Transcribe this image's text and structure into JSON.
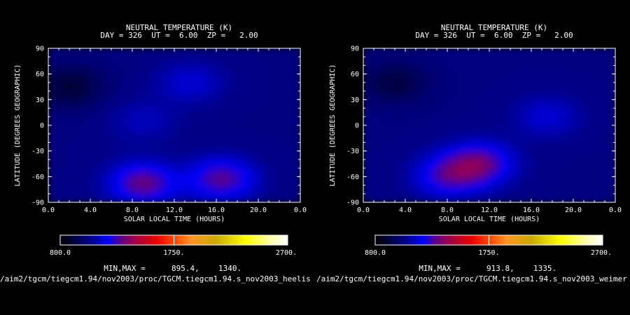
{
  "panels": [
    {
      "title": "NEUTRAL TEMPERATURE (K)",
      "subtitle": "DAY = 326  UT =  6.00  ZP =   2.00",
      "minmax_label": "MIN,MAX =",
      "min": "895.4,",
      "max": "1340.",
      "path": "/aim2/tgcm/tiegcm1.94/nov2003/proc/TGCM.tiegcm1.94.s_nov2003_heelis",
      "colorbar": {
        "min_label": "800.0",
        "mid_label": "1750.",
        "max_label": "2700."
      }
    },
    {
      "title": "NEUTRAL TEMPERATURE (K)",
      "subtitle": "DAY = 326  UT =  6.00  ZP =   2.00",
      "minmax_label": "MIN,MAX =",
      "min": "913.8,",
      "max": "1335.",
      "path": "/aim2/tgcm/tiegcm1.94/nov2003/proc/TGCM.tiegcm1.94.s_nov2003_weimer",
      "colorbar": {
        "min_label": "800.0",
        "mid_label": "1750.",
        "max_label": "2700."
      }
    }
  ],
  "chart_data": [
    {
      "type": "heatmap",
      "title": "NEUTRAL TEMPERATURE (K)",
      "subtitle": "DAY = 326  UT =  6.00  ZP =   2.00",
      "xlabel": "SOLAR LOCAL TIME (HOURS)",
      "ylabel": "LATITUDE (DEGREES GEOGRAPHIC)",
      "x_ticks": [
        "0.0",
        "4.0",
        "8.0",
        "12.0",
        "16.0",
        "20.0",
        "0.0"
      ],
      "y_ticks": [
        "90",
        "60",
        "30",
        "0",
        "-30",
        "-60",
        "-90"
      ],
      "xlim": [
        0,
        24
      ],
      "ylim": [
        -90,
        90
      ],
      "color_range": [
        800,
        2700
      ],
      "min": 895.4,
      "max": 1340,
      "features": [
        {
          "slt": 9.0,
          "lat": -68,
          "temp": 1320
        },
        {
          "slt": 16.5,
          "lat": -63,
          "temp": 1300
        },
        {
          "slt": 13.5,
          "lat": 50,
          "temp": 1150
        },
        {
          "slt": 9.0,
          "lat": 5,
          "temp": 1120
        },
        {
          "slt": 2.0,
          "lat": 45,
          "temp": 900
        }
      ]
    },
    {
      "type": "heatmap",
      "title": "NEUTRAL TEMPERATURE (K)",
      "subtitle": "DAY = 326  UT =  6.00  ZP =   2.00",
      "xlabel": "SOLAR LOCAL TIME (HOURS)",
      "ylabel": "LATITUDE (DEGREES GEOGRAPHIC)",
      "x_ticks": [
        "0.0",
        "4.0",
        "8.0",
        "12.0",
        "16.0",
        "20.0",
        "0.0"
      ],
      "y_ticks": [
        "90",
        "60",
        "30",
        "0",
        "-30",
        "-60",
        "-90"
      ],
      "xlim": [
        0,
        24
      ],
      "ylim": [
        -90,
        90
      ],
      "color_range": [
        800,
        2700
      ],
      "min": 913.8,
      "max": 1335,
      "features": [
        {
          "slt": 11.0,
          "lat": -45,
          "temp": 1320
        },
        {
          "slt": 8.0,
          "lat": -60,
          "temp": 1250
        },
        {
          "slt": 17.5,
          "lat": 10,
          "temp": 1150
        },
        {
          "slt": 3.0,
          "lat": 50,
          "temp": 920
        }
      ]
    }
  ]
}
